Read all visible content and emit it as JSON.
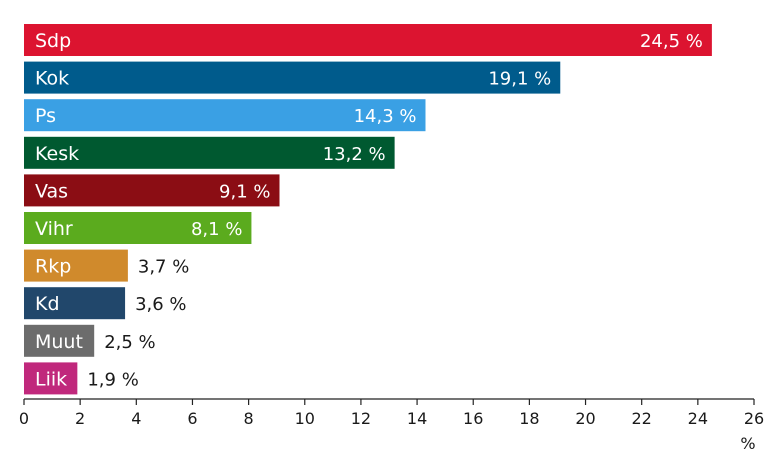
{
  "chart_data": {
    "type": "bar",
    "orientation": "horizontal",
    "categories": [
      "Sdp",
      "Kok",
      "Ps",
      "Kesk",
      "Vas",
      "Vihr",
      "Rkp",
      "Kd",
      "Muut",
      "Liik"
    ],
    "values": [
      24.5,
      19.1,
      14.3,
      13.2,
      9.1,
      8.1,
      3.7,
      3.6,
      2.5,
      1.9
    ],
    "value_labels": [
      "24,5 %",
      "19,1 %",
      "14,3 %",
      "13,2 %",
      "9,1 %",
      "8,1 %",
      "3,7 %",
      "3,6 %",
      "2,5 %",
      "1,9 %"
    ],
    "colors": [
      "#dc1430",
      "#005b8c",
      "#3aa0e4",
      "#005930",
      "#8b0d14",
      "#5bab1e",
      "#d08a2c",
      "#21476b",
      "#6c6c6c",
      "#c0287c"
    ],
    "xlim": [
      0,
      26
    ],
    "xticks": [
      0,
      2,
      4,
      6,
      8,
      10,
      12,
      14,
      16,
      18,
      20,
      22,
      24,
      26
    ],
    "xtick_labels": [
      "0",
      "2",
      "4",
      "6",
      "8",
      "10",
      "12",
      "14",
      "16",
      "18",
      "20",
      "22",
      "24",
      "26"
    ],
    "xunit": "%",
    "grid": false,
    "title": "",
    "xlabel": "%",
    "ylabel": ""
  }
}
